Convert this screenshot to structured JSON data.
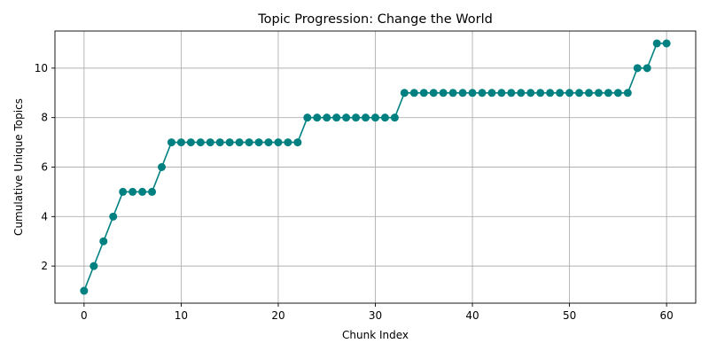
{
  "chart_data": {
    "type": "line",
    "title": "Topic Progression: Change the World",
    "xlabel": "Chunk Index",
    "ylabel": "Cumulative Unique Topics",
    "xlim": [
      -3,
      63
    ],
    "ylim": [
      0.5,
      11.5
    ],
    "xticks": [
      0,
      10,
      20,
      30,
      40,
      50,
      60
    ],
    "yticks": [
      2,
      4,
      6,
      8,
      10
    ],
    "grid": true,
    "color": "#008080",
    "marker": "circle",
    "x": [
      0,
      1,
      2,
      3,
      4,
      5,
      6,
      7,
      8,
      9,
      10,
      11,
      12,
      13,
      14,
      15,
      16,
      17,
      18,
      19,
      20,
      21,
      22,
      23,
      24,
      25,
      26,
      27,
      28,
      29,
      30,
      31,
      32,
      33,
      34,
      35,
      36,
      37,
      38,
      39,
      40,
      41,
      42,
      43,
      44,
      45,
      46,
      47,
      48,
      49,
      50,
      51,
      52,
      53,
      54,
      55,
      56,
      57,
      58,
      59,
      60
    ],
    "y": [
      1,
      2,
      3,
      4,
      5,
      5,
      5,
      5,
      6,
      7,
      7,
      7,
      7,
      7,
      7,
      7,
      7,
      7,
      7,
      7,
      7,
      7,
      7,
      8,
      8,
      8,
      8,
      8,
      8,
      8,
      8,
      8,
      8,
      9,
      9,
      9,
      9,
      9,
      9,
      9,
      9,
      9,
      9,
      9,
      9,
      9,
      9,
      9,
      9,
      9,
      9,
      9,
      9,
      9,
      9,
      9,
      9,
      10,
      10,
      11,
      11
    ]
  }
}
